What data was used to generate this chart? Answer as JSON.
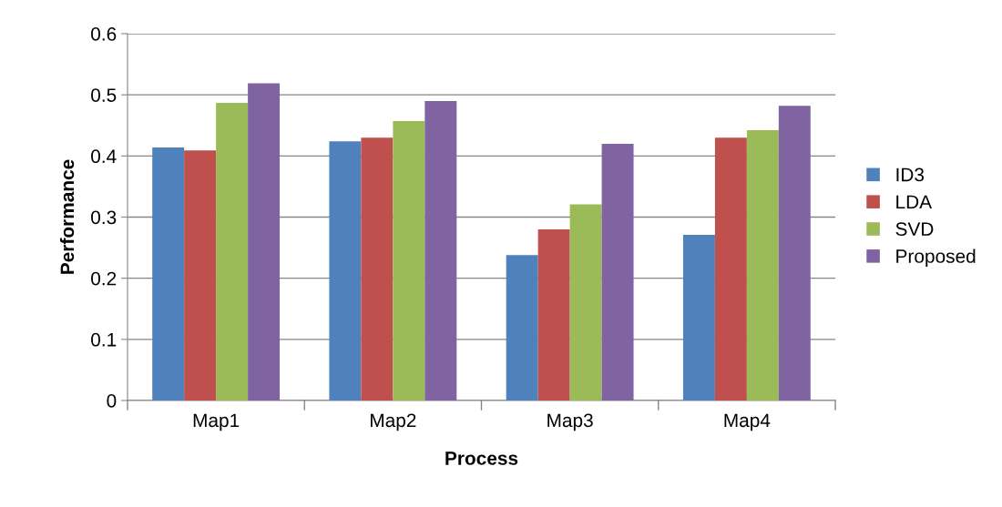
{
  "chart_data": {
    "type": "bar",
    "xlabel": "Process",
    "ylabel": "Performance",
    "categories": [
      "Map1",
      "Map2",
      "Map3",
      "Map4"
    ],
    "series": [
      {
        "name": "ID3",
        "color": "#4f81bd",
        "values": [
          0.414,
          0.424,
          0.238,
          0.271
        ]
      },
      {
        "name": "LDA",
        "color": "#c0504d",
        "values": [
          0.409,
          0.43,
          0.28,
          0.43
        ]
      },
      {
        "name": "SVD",
        "color": "#9bbb59",
        "values": [
          0.487,
          0.457,
          0.321,
          0.442
        ]
      },
      {
        "name": "Proposed",
        "color": "#8064a2",
        "values": [
          0.519,
          0.49,
          0.42,
          0.482
        ]
      }
    ],
    "ylim": [
      0,
      0.6
    ],
    "yticks": [
      0,
      0.1,
      0.2,
      0.3,
      0.4,
      0.5,
      0.6
    ],
    "grid": "y",
    "legend": "right"
  }
}
